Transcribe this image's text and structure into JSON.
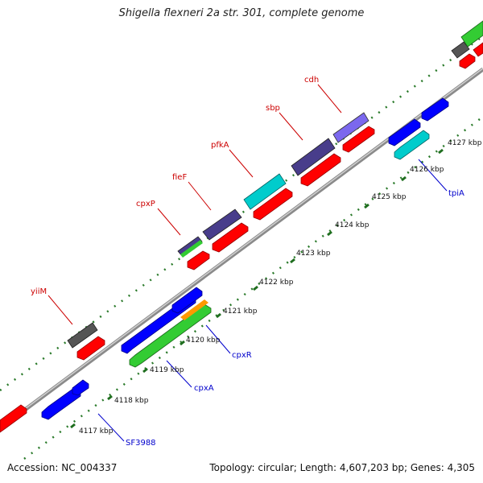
{
  "title": "Shigella flexneri 2a str. 301, complete genome",
  "accession_text": "Accession: NC_004337",
  "stats_text": "Topology: circular; Length: 4,607,203 bp; Genes: 4,305",
  "colors": {
    "forward_gene": "#ff0000",
    "reverse_gene": "#0000ff",
    "cog_dark_purple": "#483d8b",
    "cog_medium_purple": "#7b68ee",
    "cog_cyan": "#00cccc",
    "cog_green": "#33cc33",
    "cog_grey": "#555555",
    "cog_orange": "#ff9900",
    "backbone": "#888888",
    "ticks": "#2a7a2a",
    "forward_label": "#cc0000",
    "reverse_label": "#0000cc"
  },
  "scale_labels": [
    "4117 kbp",
    "4118 kbp",
    "4119 kbp",
    "4120 kbp",
    "4121 kbp",
    "4122 kbp",
    "4123 kbp",
    "4124 kbp",
    "4125 kbp",
    "4126 kbp",
    "4127 kbp"
  ],
  "forward_gene_labels": [
    "yiiM",
    "cpxP",
    "fieF",
    "pfkA",
    "sbp",
    "cdh"
  ],
  "reverse_gene_labels": [
    "SF3988",
    "cpxA",
    "cpxR",
    "tpiA"
  ]
}
